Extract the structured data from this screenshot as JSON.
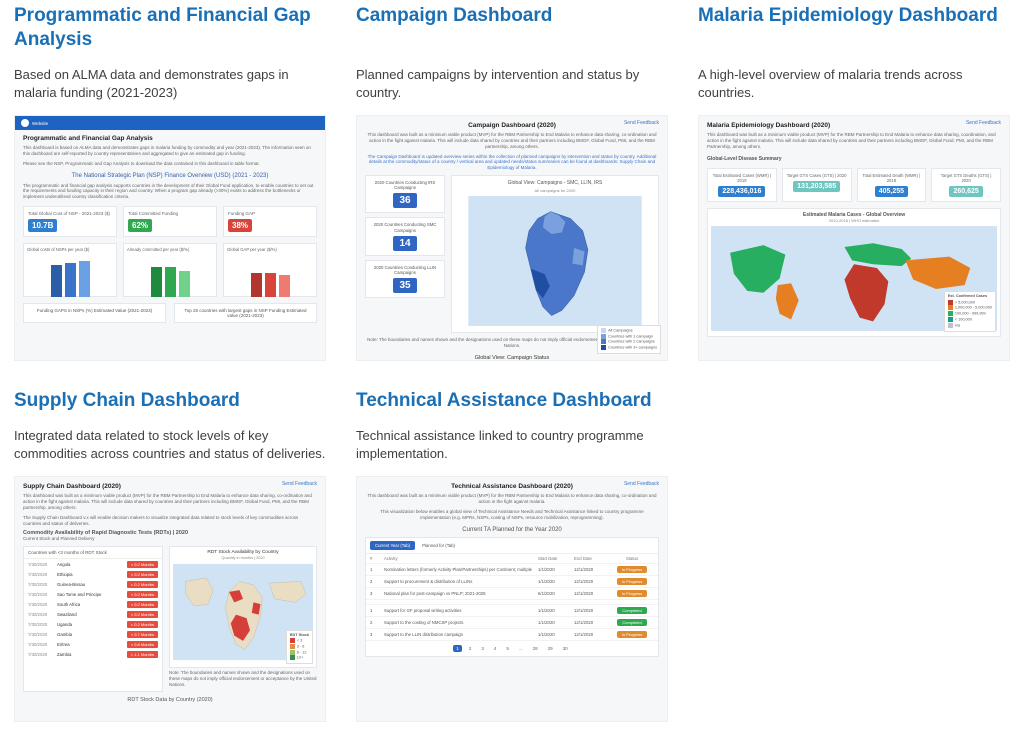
{
  "cards": [
    {
      "title": "Programmatic and Financial Gap Analysis",
      "desc": "Based on ALMA data and demonstrates gaps in malaria funding (2021-2023)",
      "thumb": {
        "brand": "Website",
        "header": "Programmatic and Financial Gap Analysis",
        "intro1": "This dashboard is based on ALMA data and demonstrates gaps in malaria funding by commodity and year (2021-2023). The information seen on this dashboard are self-reported by country representatives and aggregated to give an estimated gap in funding.",
        "intro2": "Please see the NSP, Programmatic and Gap Analysis to download the data contained in this dashboard in table format.",
        "subhead": "The National Strategic Plan (NSP) Finance Overview (USD) (2021 - 2023)",
        "subtext": "The programmatic and financial gap analysis supports countries in the development of their Global Fund application, to enable countries to set out the requirements and funding capacity in their region and country. When a program gap already (>30%) exists to address the bottlenecks or implement underutilised country classification criteria.",
        "stats": [
          {
            "label": "Total Global Cost of NSP - 2021-2023 ($)",
            "value": "10.7B",
            "color": "#2f7fd0"
          },
          {
            "label": "Total Committed Funding",
            "value": "62%",
            "color": "#2fa84f"
          },
          {
            "label": "Funding GAP",
            "value": "38%",
            "color": "#d9443a"
          }
        ],
        "bars": [
          {
            "title": "Global costs of NSPs per year ($)",
            "colors": [
              "#2a5fa8",
              "#3b73c9",
              "#6aa0e4"
            ],
            "heights": [
              32,
              34,
              36
            ]
          },
          {
            "title": "Already committed per year ($/%)",
            "colors": [
              "#1f8a3b",
              "#2fa84f",
              "#6fd18a"
            ],
            "heights": [
              30,
              30,
              26
            ]
          },
          {
            "title": "Global GAP per year ($/%)",
            "colors": [
              "#b2362e",
              "#d9443a",
              "#ef7a72"
            ],
            "heights": [
              24,
              24,
              22
            ]
          }
        ],
        "footers": [
          "Funding GAPS in NSPs (%)\nEstimated Value (2021-2023)",
          "Top 25 countries with largest gaps in NSP Funding\nEstimated value (2021-2023)"
        ]
      }
    },
    {
      "title": "Campaign Dashboard",
      "desc": "Planned campaigns by intervention and status by country.",
      "thumb": {
        "header": "Campaign Dashboard (2020)",
        "intro1": "This dashboard was built as a minimum viable product (MVP) for the RBM Partnership to End Malaria to enhance data sharing, co-ordination and action in the fight against malaria. This will include data shared by countries and their partners including BMGF, Global Fund, PMI, and the RBM partnership, among others.",
        "intro2": "The Campaign Dashboard is updated overview series within the collection of planned campaigns by intervention and status by country. Additional details at the commodity/status of a country / vertical area and updated needs/status summaries can be found at dashboards: Supply Chain and Epidemiology of Malaria.",
        "left": [
          {
            "label": "2020 Countries Conducting IRS Campaigns",
            "value": "36"
          },
          {
            "label": "2020 Countries Conducting SMC Campaigns",
            "value": "14"
          },
          {
            "label": "2020 Countries Conducting LLIN Campaigns",
            "value": "35"
          }
        ],
        "map_title": "Global View: Campaigns - SMC, LLIN, IRS",
        "map_sub": "All campaigns for 2020",
        "legend": [
          "All Campaigns",
          "Countries with 1 campaign",
          "Countries with 2 campaigns",
          "Countries with 3+ campaigns"
        ],
        "legend_colors": [
          "#c9d6ef",
          "#7aa0dd",
          "#4a77c9",
          "#1e4fa3"
        ],
        "foot_note": "Note: The boundaries and names shown and the designations used on these maps do not imply official endorsement or acceptance by the United Nations.",
        "bottom": "Global View: Campaign Status"
      }
    },
    {
      "title": "Malaria Epidemiology Dashboard",
      "desc": "A high-level overview of malaria trends across countries.",
      "thumb": {
        "header": "Malaria Epidemiology Dashboard (2020)",
        "intro": "This dashboard was built as a minimum viable product (MVP) for the RBM Partnership to End Malaria to enhance data sharing, coordination, and action in the fight against malaria. This will include data shared by countries and their partners including BMGF, Global Fund, PMI, and the RBM Partnership, among others.",
        "section": "Global-Level Disease Summary",
        "stats": [
          {
            "label": "Total Estimated Cases (WMR) | 2018",
            "value": "228,436,016",
            "color": "#2f7fd0"
          },
          {
            "label": "Target GTS Cases (GTS) | 2020",
            "value": "131,203,585",
            "color": "#6fc6c0"
          },
          {
            "label": "Total Estimated Death (WMR) | 2018",
            "value": "405,255",
            "color": "#2f7fd0"
          },
          {
            "label": "Target GTS Deaths (GTS) | 2020",
            "value": "260,625",
            "color": "#6fc6c0"
          }
        ],
        "map_title": "Estimated Malaria Cases - Global Overview",
        "map_sub": "2010-2018 | WHO estimates",
        "legend_title": "Est. Confirmed Cases",
        "legend": [
          "> 5,000,000",
          "1,000,000 - 5,000,000",
          "100,000 - 999,999",
          "< 100,000",
          "n/a"
        ],
        "legend_colors": [
          "#c0392b",
          "#e67e22",
          "#27ae60",
          "#16a085",
          "#bdc3c7"
        ]
      }
    },
    {
      "title": "Supply Chain Dashboard",
      "desc": "Integrated data related to stock levels of key commodities across countries and status of deliveries.",
      "thumb": {
        "header": "Supply Chain Dashboard (2020)",
        "intro1": "This dashboard was built as a minimum viable product (MVP) for the RBM Partnership to End Malaria to enhance data sharing, co-ordination and action in the fight against malaria. This will include data shared by countries and their partners including BMGF, Global Fund, PMI, and the RBM partnership, among others.",
        "intro2": "The Supply Chain Dashboard v.x will enable decision makers to visualize integrated data related to stock levels of key commodities across countries and status of deliveries.",
        "section": "Commodity Availability of Rapid Diagnostic Tests (RDTs) | 2020",
        "section_sub": "Current Stock and Planned Delivery",
        "table_title": "Countries with <3 months of RDT Stock",
        "rows": [
          {
            "date": "7/30/2020",
            "country": "Angola",
            "badge": "< 0.2 Months"
          },
          {
            "date": "7/30/2020",
            "country": "Ethiopia",
            "badge": "< 0.2 Months"
          },
          {
            "date": "7/30/2020",
            "country": "Guinea-Bissau",
            "badge": "< 0.2 Months"
          },
          {
            "date": "7/30/2020",
            "country": "Sao Tome and Principe",
            "badge": "< 0.2 Months"
          },
          {
            "date": "7/30/2020",
            "country": "South Africa",
            "badge": "< 0.2 Months"
          },
          {
            "date": "7/30/2020",
            "country": "Swaziland",
            "badge": "< 0.2 Months"
          },
          {
            "date": "7/30/2020",
            "country": "Uganda",
            "badge": "< 0.2 Months"
          },
          {
            "date": "7/30/2020",
            "country": "Gambia",
            "badge": "< 0.7 Months"
          },
          {
            "date": "7/30/2020",
            "country": "Eritrea",
            "badge": "< 0.8 Months"
          },
          {
            "date": "7/30/2020",
            "country": "Zambia",
            "badge": "< 1.1 Months"
          }
        ],
        "map_title": "RDT Stock Availability by Country",
        "map_sub": "Quantity in months | 2020",
        "legend": [
          "< 3",
          "3 - 6",
          "6 - 12",
          "12+"
        ],
        "legend_colors": [
          "#d43f3a",
          "#e28b44",
          "#97c26b",
          "#3a8f4d"
        ],
        "footer_title": "RDT Stock Data by Country (2020)",
        "note": "Note: The boundaries and names shown and the designations used on these maps do not imply official endorsement or acceptance by the United Nations."
      }
    },
    {
      "title": "Technical Assistance Dashboard",
      "desc": "Technical assistance linked to country programme implementation.",
      "thumb": {
        "header": "Technical Assistance Dashboard (2020)",
        "intro1": "This dashboard was built as a minimum viable product (MVP) for the RBM Partnership to End Malaria to enhance data sharing, co-ordination and action in the fight against malaria.",
        "intro2": "This visualization below enables a global view of Technical Assistance Needs and Technical Assistance linked to country programme implementation (e.g. MPRs, NSPs, costing of NSPs, resource mobilization, reprogramming).",
        "section": "Current TA Planned for the Year 2020",
        "tabs": [
          "Current Year (Tab)",
          "Planned for (Tab)"
        ],
        "columns": [
          "#",
          "Activity",
          "Start Date",
          "End Date",
          "Status"
        ],
        "rows": [
          {
            "n": "1",
            "a": "Nomination letters (formerly Activity Plan/Partnerships) per Continent; multiple",
            "s": "1/1/2020",
            "e": "12/1/2020",
            "status": "In Progress",
            "color": "#e08b2e"
          },
          {
            "n": "2",
            "a": "Support to procurement & distribution of LLINs",
            "s": "1/1/2020",
            "e": "12/1/2020",
            "status": "In Progress",
            "color": "#e08b2e"
          },
          {
            "n": "3",
            "a": "National plan for post-campaign vs PNLP; 2021-2025",
            "s": "6/1/2020",
            "e": "12/1/2020",
            "status": "In Progress",
            "color": "#e08b2e"
          },
          {
            "n": "",
            "a": "",
            "s": "",
            "e": "",
            "status": "",
            "color": ""
          },
          {
            "n": "1",
            "a": "Support for GF proposal writing activities",
            "s": "1/1/2020",
            "e": "12/1/2020",
            "status": "Completed",
            "color": "#2fa84f"
          },
          {
            "n": "2",
            "a": "Support to the costing of NMCSP projects",
            "s": "1/1/2020",
            "e": "12/1/2020",
            "status": "Completed",
            "color": "#2fa84f"
          },
          {
            "n": "3",
            "a": "Support to the LLIN distribution campaign",
            "s": "1/1/2020",
            "e": "12/1/2020",
            "status": "In Progress",
            "color": "#e08b2e"
          }
        ],
        "pager": [
          "1",
          "2",
          "3",
          "4",
          "5",
          "...",
          "28",
          "29",
          "30"
        ]
      }
    }
  ],
  "colors": {
    "link": "#1a6fb5",
    "feedback": "#3b73c9"
  }
}
